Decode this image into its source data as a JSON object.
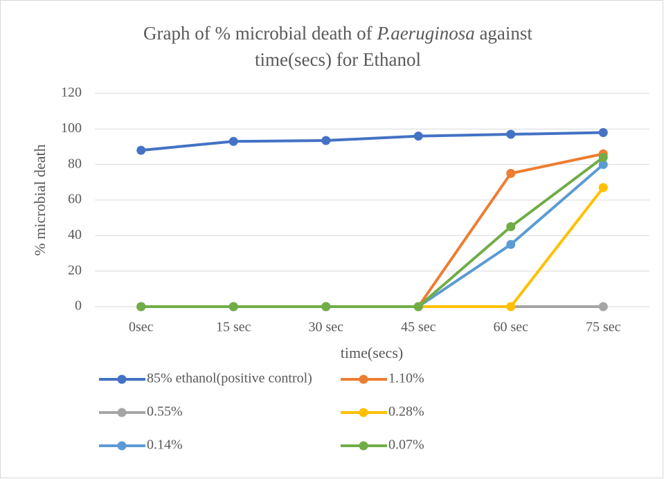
{
  "chart_data": {
    "type": "line",
    "title": [
      "Graph of % microbial death of",
      "P.aeruginosa",
      "against",
      "time(secs) for Ethanol"
    ],
    "x_label": "time(secs)",
    "y_label": "% microbial death",
    "categories": [
      "0sec",
      "15 sec",
      "30 sec",
      "45 sec",
      "60 sec",
      "75 sec"
    ],
    "series": [
      {
        "name": "85% ethanol(positive control)",
        "color": "#4472c4",
        "values": [
          88,
          93,
          93.5,
          96,
          97,
          98
        ]
      },
      {
        "name": "1.10%",
        "color": "#ed7d31",
        "values": [
          0,
          0,
          0,
          0,
          75,
          86
        ]
      },
      {
        "name": "0.55%",
        "color": "#a5a5a5",
        "values": [
          0,
          0,
          0,
          0,
          0,
          0
        ]
      },
      {
        "name": "0.28%",
        "color": "#ffc000",
        "values": [
          0,
          0,
          0,
          0,
          0,
          67
        ]
      },
      {
        "name": "0.14%",
        "color": "#5b9bd5",
        "values": [
          0,
          0,
          0,
          0,
          35,
          80
        ]
      },
      {
        "name": "0.07%",
        "color": "#70ad47",
        "values": [
          0,
          0,
          0,
          0,
          45,
          84
        ]
      }
    ],
    "ylim": [
      0,
      120
    ],
    "yticks": [
      0,
      20,
      40,
      60,
      80,
      100,
      120
    ],
    "grid": true,
    "legend": "bottom"
  }
}
